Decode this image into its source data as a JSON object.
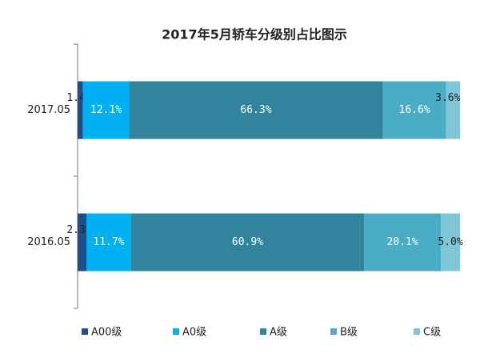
{
  "chart_data": {
    "type": "stacked-bar-horizontal",
    "title": "2017年5月轿车分级别占比图示",
    "categories": [
      "2017.05",
      "2016.05"
    ],
    "xlim": [
      0,
      100
    ],
    "legend": "bottom",
    "series": [
      {
        "name": "A00级",
        "color": "#1f4e8c",
        "values": [
          1.4,
          2.3
        ],
        "value_labels": [
          "1.4%",
          "2.3%"
        ]
      },
      {
        "name": "A0级",
        "color": "#00b0f0",
        "values": [
          12.1,
          11.7
        ],
        "value_labels": [
          "12.1%",
          "11.7%"
        ]
      },
      {
        "name": "A级",
        "color": "#31849b",
        "values": [
          66.3,
          60.9
        ],
        "value_labels": [
          "66.3%",
          "60.9%"
        ]
      },
      {
        "name": "B级",
        "color": "#4bacc6",
        "values": [
          16.6,
          20.1
        ],
        "value_labels": [
          "16.6%",
          "20.1%"
        ]
      },
      {
        "name": "C级",
        "color": "#7fc6d8",
        "values": [
          3.6,
          5.0
        ],
        "value_labels": [
          "3.6%",
          "5.0%"
        ]
      }
    ]
  }
}
